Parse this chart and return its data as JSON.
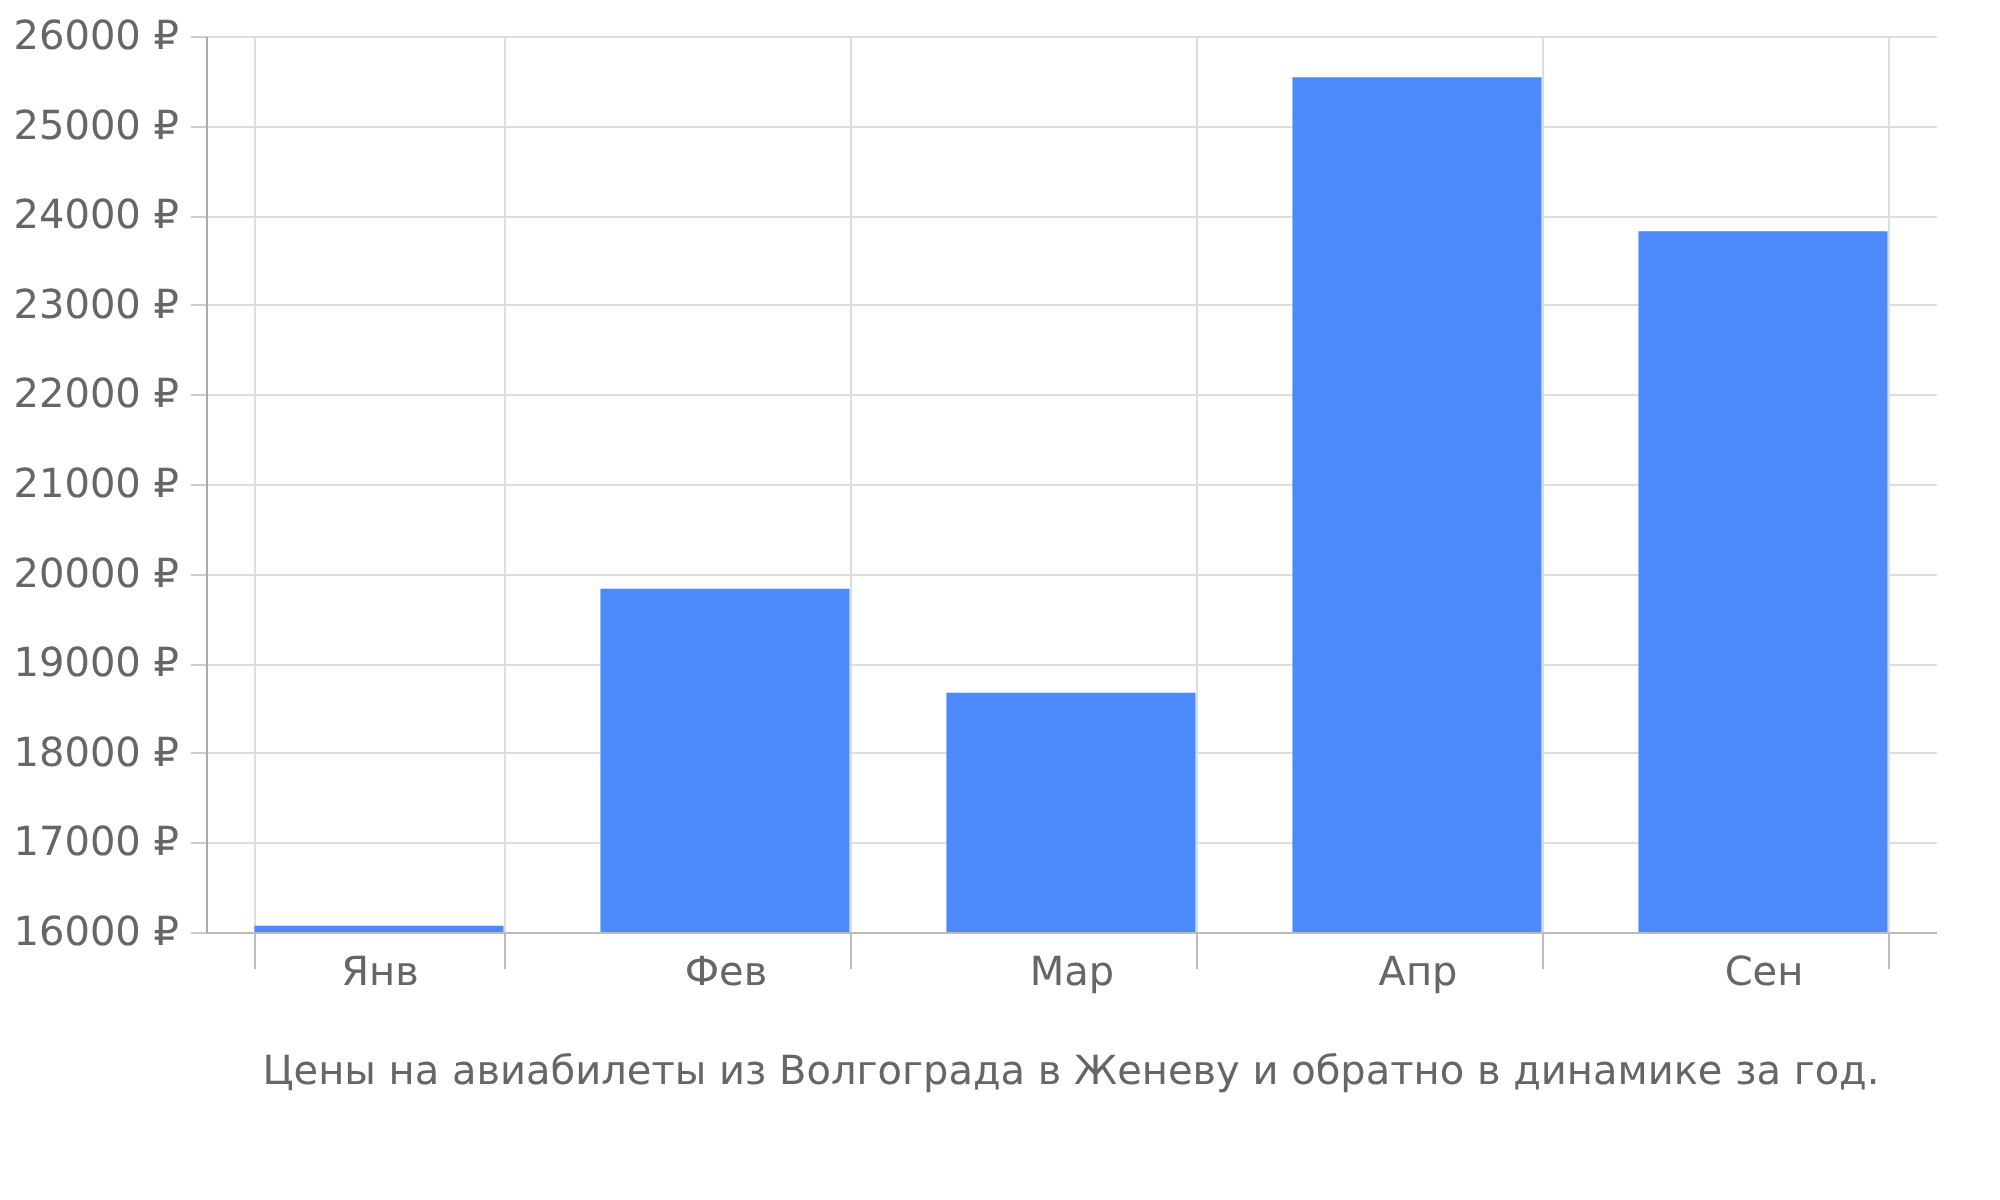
{
  "chart_data": {
    "type": "bar",
    "categories": [
      "Янв",
      "Фев",
      "Мар",
      "Апр",
      "Сен"
    ],
    "values": [
      16070,
      19830,
      18670,
      25540,
      23820
    ],
    "color": "#4c89f9",
    "ylim": [
      16000,
      26000
    ],
    "yticks": [
      {
        "value": 16000,
        "label": "16000 ₽"
      },
      {
        "value": 17000,
        "label": "17000 ₽"
      },
      {
        "value": 18000,
        "label": "18000 ₽"
      },
      {
        "value": 19000,
        "label": "19000 ₽"
      },
      {
        "value": 20000,
        "label": "20000 ₽"
      },
      {
        "value": 21000,
        "label": "21000 ₽"
      },
      {
        "value": 22000,
        "label": "22000 ₽"
      },
      {
        "value": 23000,
        "label": "23000 ₽"
      },
      {
        "value": 24000,
        "label": "24000 ₽"
      },
      {
        "value": 25000,
        "label": "25000 ₽"
      },
      {
        "value": 26000,
        "label": "26000 ₽"
      }
    ],
    "grid": true,
    "annotations": [
      "Цены на авиабилеты из Волгограда в Женеву и обратно в динамике за год."
    ]
  }
}
